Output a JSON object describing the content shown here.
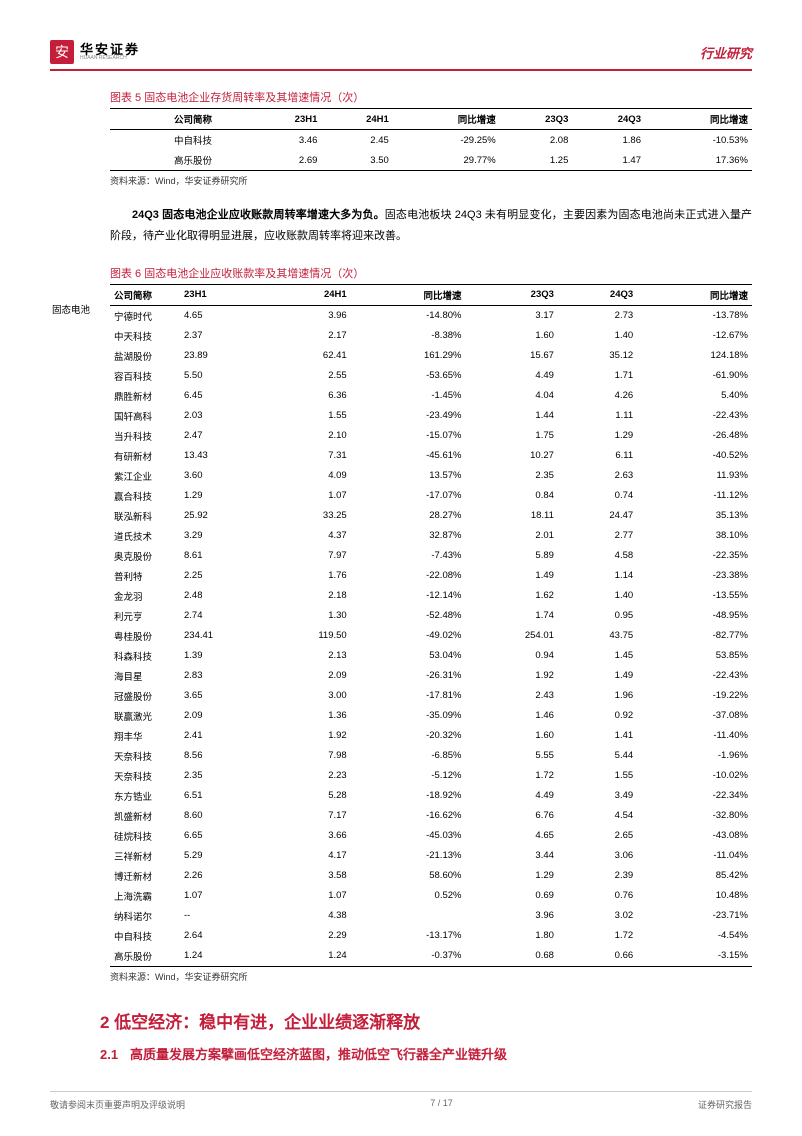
{
  "header": {
    "logo_cn": "华安证券",
    "logo_en": "HUAAN RESEARCH",
    "right": "行业研究"
  },
  "table5": {
    "title": "图表 5 固态电池企业存货周转率及其增速情况（次）",
    "cols": [
      "",
      "公司简称",
      "23H1",
      "24H1",
      "同比增速",
      "23Q3",
      "24Q3",
      "同比增速"
    ],
    "rows": [
      [
        "",
        "中自科技",
        "3.46",
        "2.45",
        "-29.25%",
        "2.08",
        "1.86",
        "-10.53%"
      ],
      [
        "",
        "高乐股份",
        "2.69",
        "3.50",
        "29.77%",
        "1.25",
        "1.47",
        "17.36%"
      ]
    ],
    "source": "资料来源：Wind，华安证券研究所"
  },
  "para1": "24Q3 固态电池企业应收账款周转率增速大多为负。固态电池板块 24Q3 未有明显变化，主要因素为固态电池尚未正式进入量产阶段，待产业化取得明显进展，应收账款周转率将迎来改善。",
  "para1_bold": "24Q3 固态电池企业应收账款周转率增速大多为负。",
  "para1_rest": "固态电池板块 24Q3 未有明显变化，主要因素为固态电池尚未正式进入量产阶段，待产业化取得明显进展，应收账款周转率将迎来改善。",
  "table6": {
    "title": "图表 6 固态电池企业应收账款率及其增速情况（次）",
    "side_label": "固态电池",
    "cols": [
      "公司简称",
      "23H1",
      "24H1",
      "同比增速",
      "23Q3",
      "24Q3",
      "同比增速"
    ],
    "rows": [
      [
        "宁德时代",
        "4.65",
        "3.96",
        "-14.80%",
        "3.17",
        "2.73",
        "-13.78%"
      ],
      [
        "中天科技",
        "2.37",
        "2.17",
        "-8.38%",
        "1.60",
        "1.40",
        "-12.67%"
      ],
      [
        "盐湖股份",
        "23.89",
        "62.41",
        "161.29%",
        "15.67",
        "35.12",
        "124.18%"
      ],
      [
        "容百科技",
        "5.50",
        "2.55",
        "-53.65%",
        "4.49",
        "1.71",
        "-61.90%"
      ],
      [
        "鼎胜新材",
        "6.45",
        "6.36",
        "-1.45%",
        "4.04",
        "4.26",
        "5.40%"
      ],
      [
        "国轩高科",
        "2.03",
        "1.55",
        "-23.49%",
        "1.44",
        "1.11",
        "-22.43%"
      ],
      [
        "当升科技",
        "2.47",
        "2.10",
        "-15.07%",
        "1.75",
        "1.29",
        "-26.48%"
      ],
      [
        "有研新材",
        "13.43",
        "7.31",
        "-45.61%",
        "10.27",
        "6.11",
        "-40.52%"
      ],
      [
        "紫江企业",
        "3.60",
        "4.09",
        "13.57%",
        "2.35",
        "2.63",
        "11.93%"
      ],
      [
        "赢合科技",
        "1.29",
        "1.07",
        "-17.07%",
        "0.84",
        "0.74",
        "-11.12%"
      ],
      [
        "联泓新科",
        "25.92",
        "33.25",
        "28.27%",
        "18.11",
        "24.47",
        "35.13%"
      ],
      [
        "道氏技术",
        "3.29",
        "4.37",
        "32.87%",
        "2.01",
        "2.77",
        "38.10%"
      ],
      [
        "奥克股份",
        "8.61",
        "7.97",
        "-7.43%",
        "5.89",
        "4.58",
        "-22.35%"
      ],
      [
        "普利特",
        "2.25",
        "1.76",
        "-22.08%",
        "1.49",
        "1.14",
        "-23.38%"
      ],
      [
        "金龙羽",
        "2.48",
        "2.18",
        "-12.14%",
        "1.62",
        "1.40",
        "-13.55%"
      ],
      [
        "利元亨",
        "2.74",
        "1.30",
        "-52.48%",
        "1.74",
        "0.95",
        "-48.95%"
      ],
      [
        "粤桂股份",
        "234.41",
        "119.50",
        "-49.02%",
        "254.01",
        "43.75",
        "-82.77%"
      ],
      [
        "科森科技",
        "1.39",
        "2.13",
        "53.04%",
        "0.94",
        "1.45",
        "53.85%"
      ],
      [
        "海目星",
        "2.83",
        "2.09",
        "-26.31%",
        "1.92",
        "1.49",
        "-22.43%"
      ],
      [
        "冠盛股份",
        "3.65",
        "3.00",
        "-17.81%",
        "2.43",
        "1.96",
        "-19.22%"
      ],
      [
        "联赢激光",
        "2.09",
        "1.36",
        "-35.09%",
        "1.46",
        "0.92",
        "-37.08%"
      ],
      [
        "翔丰华",
        "2.41",
        "1.92",
        "-20.32%",
        "1.60",
        "1.41",
        "-11.40%"
      ],
      [
        "天奈科技",
        "8.56",
        "7.98",
        "-6.85%",
        "5.55",
        "5.44",
        "-1.96%"
      ],
      [
        "天奈科技",
        "2.35",
        "2.23",
        "-5.12%",
        "1.72",
        "1.55",
        "-10.02%"
      ],
      [
        "东方锆业",
        "6.51",
        "5.28",
        "-18.92%",
        "4.49",
        "3.49",
        "-22.34%"
      ],
      [
        "凯盛新材",
        "8.60",
        "7.17",
        "-16.62%",
        "6.76",
        "4.54",
        "-32.80%"
      ],
      [
        "硅烷科技",
        "6.65",
        "3.66",
        "-45.03%",
        "4.65",
        "2.65",
        "-43.08%"
      ],
      [
        "三祥新材",
        "5.29",
        "4.17",
        "-21.13%",
        "3.44",
        "3.06",
        "-11.04%"
      ],
      [
        "博迁新材",
        "2.26",
        "3.58",
        "58.60%",
        "1.29",
        "2.39",
        "85.42%"
      ],
      [
        "上海洗霸",
        "1.07",
        "1.07",
        "0.52%",
        "0.69",
        "0.76",
        "10.48%"
      ],
      [
        "纳科诺尔",
        "--",
        "4.38",
        "",
        "3.96",
        "3.02",
        "-23.71%"
      ],
      [
        "中自科技",
        "2.64",
        "2.29",
        "-13.17%",
        "1.80",
        "1.72",
        "-4.54%"
      ],
      [
        "高乐股份",
        "1.24",
        "1.24",
        "-0.37%",
        "0.68",
        "0.66",
        "-3.15%"
      ]
    ],
    "source": "资料来源：Wind，华安证券研究所"
  },
  "section2": {
    "h2": "2 低空经济：稳中有进，企业业绩逐渐释放",
    "h3_num": "2.1",
    "h3_text": "高质量发展方案擘画低空经济蓝图，推动低空飞行器全产业链升级"
  },
  "footer": {
    "left": "敬请参阅末页重要声明及评级说明",
    "center": "7 / 17",
    "right": "证券研究报告"
  }
}
